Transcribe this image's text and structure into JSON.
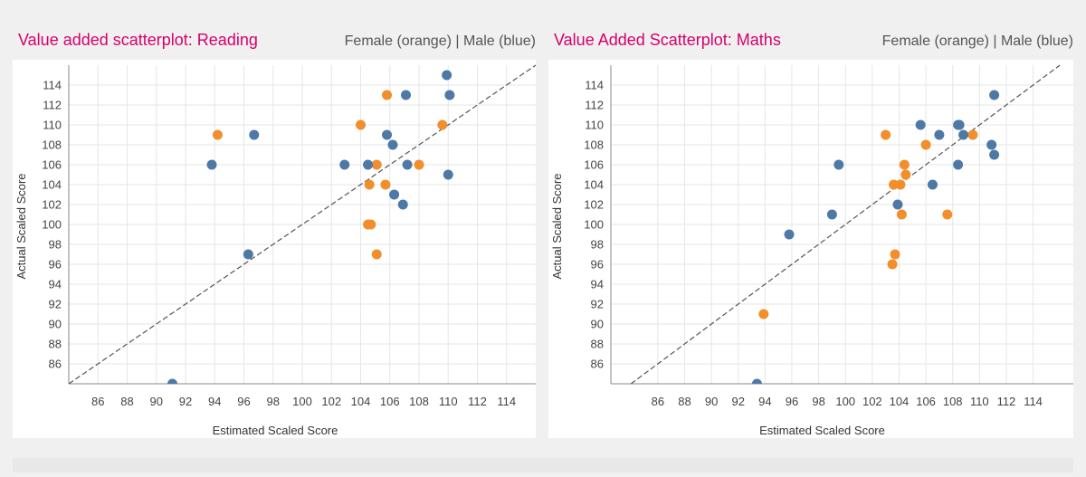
{
  "colors": {
    "female": "#f28e2b",
    "male": "#4e79a7",
    "title": "#d6006b",
    "grid": "#e6e6e6",
    "diagonal": "#555555"
  },
  "charts": [
    {
      "title": "Value added scatterplot: Reading",
      "legend": "Female (orange)   |   Male  (blue)"
    },
    {
      "title": "Value Added Scatterplot: Maths",
      "legend": "Female (orange)   |   Male  (blue)"
    }
  ],
  "chart_data": [
    {
      "type": "scatter",
      "title": "Value added scatterplot: Reading",
      "xlabel": "Estimated Scaled Score",
      "ylabel": "Actual Scaled Score",
      "xlim": [
        84,
        116
      ],
      "ylim": [
        84,
        116
      ],
      "xticks": [
        86,
        88,
        90,
        92,
        94,
        96,
        98,
        100,
        102,
        104,
        106,
        108,
        110,
        112,
        114
      ],
      "yticks": [
        86,
        88,
        90,
        92,
        94,
        96,
        98,
        100,
        102,
        104,
        106,
        108,
        110,
        112,
        114
      ],
      "reference_line": "y = x",
      "grid": true,
      "series": [
        {
          "name": "Female (orange)",
          "color": "#f28e2b",
          "points": [
            [
              94.2,
              109
            ],
            [
              104.0,
              110
            ],
            [
              105.8,
              113
            ],
            [
              109.6,
              110
            ],
            [
              105.1,
              106
            ],
            [
              108.0,
              106
            ],
            [
              104.6,
              104
            ],
            [
              105.7,
              104
            ],
            [
              104.5,
              100
            ],
            [
              104.7,
              100
            ],
            [
              105.1,
              97
            ]
          ]
        },
        {
          "name": "Male (blue)",
          "color": "#4e79a7",
          "points": [
            [
              93.8,
              106
            ],
            [
              96.7,
              109
            ],
            [
              96.3,
              97
            ],
            [
              91.1,
              84
            ],
            [
              102.9,
              106
            ],
            [
              104.5,
              106
            ],
            [
              105.8,
              109
            ],
            [
              106.2,
              108
            ],
            [
              107.1,
              113
            ],
            [
              107.2,
              106
            ],
            [
              109.9,
              115
            ],
            [
              110.1,
              113
            ],
            [
              110.0,
              105
            ],
            [
              106.3,
              103
            ],
            [
              106.9,
              102
            ]
          ]
        }
      ]
    },
    {
      "type": "scatter",
      "title": "Value Added Scatterplot: Maths",
      "xlabel": "Estimated Scaled Score",
      "ylabel": "Actual Scaled Score",
      "xlim": [
        82.5,
        117
      ],
      "ylim": [
        84,
        116
      ],
      "xticks": [
        86,
        88,
        90,
        92,
        94,
        96,
        98,
        100,
        102,
        104,
        106,
        108,
        110,
        112,
        114
      ],
      "yticks": [
        86,
        88,
        90,
        92,
        94,
        96,
        98,
        100,
        102,
        104,
        106,
        108,
        110,
        112,
        114
      ],
      "reference_line": "y = x",
      "grid": true,
      "series": [
        {
          "name": "Female (orange)",
          "color": "#f28e2b",
          "points": [
            [
              93.9,
              91
            ],
            [
              103.0,
              109
            ],
            [
              106.0,
              108
            ],
            [
              109.5,
              109
            ],
            [
              104.4,
              106
            ],
            [
              104.5,
              105
            ],
            [
              103.6,
              104
            ],
            [
              104.1,
              104
            ],
            [
              104.2,
              101
            ],
            [
              107.6,
              101
            ],
            [
              103.7,
              97
            ],
            [
              103.5,
              96
            ]
          ]
        },
        {
          "name": "Male (blue)",
          "color": "#4e79a7",
          "points": [
            [
              93.4,
              84
            ],
            [
              95.8,
              99
            ],
            [
              99.0,
              101
            ],
            [
              99.5,
              106
            ],
            [
              103.9,
              102
            ],
            [
              105.6,
              110
            ],
            [
              106.5,
              104
            ],
            [
              107.0,
              109
            ],
            [
              108.4,
              110
            ],
            [
              108.5,
              110
            ],
            [
              108.8,
              109
            ],
            [
              108.4,
              106
            ],
            [
              110.9,
              108
            ],
            [
              111.1,
              113
            ],
            [
              111.1,
              107
            ]
          ]
        }
      ]
    }
  ]
}
